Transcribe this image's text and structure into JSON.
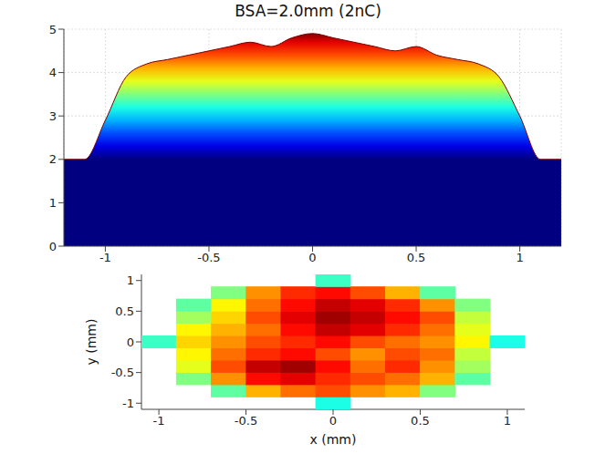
{
  "chart_data": [
    {
      "type": "area",
      "title": "BSA=2.0mm (2nC)",
      "x": [
        -1.2,
        -1.1,
        -1.0,
        -0.9,
        -0.8,
        -0.7,
        -0.6,
        -0.5,
        -0.4,
        -0.3,
        -0.2,
        -0.1,
        0,
        0.1,
        0.2,
        0.3,
        0.4,
        0.5,
        0.6,
        0.7,
        0.8,
        0.9,
        1.0,
        1.1,
        1.2
      ],
      "values": [
        2,
        2,
        2.9,
        3.9,
        4.2,
        4.3,
        4.4,
        4.5,
        4.6,
        4.7,
        4.6,
        4.8,
        4.9,
        4.8,
        4.7,
        4.6,
        4.5,
        4.6,
        4.4,
        4.3,
        4.2,
        3.9,
        3.0,
        2,
        2
      ],
      "xlim": [
        -1.2,
        1.2
      ],
      "xticks": [
        -1,
        -0.5,
        0,
        0.5,
        1
      ],
      "ylim": [
        0,
        5
      ],
      "yticks": [
        0,
        1,
        2,
        3,
        4,
        5
      ],
      "clim": [
        2,
        5
      ],
      "grid": true
    },
    {
      "type": "heatmap",
      "x_label": "x (mm)",
      "y_label": "y (mm)",
      "x": [
        -1,
        -0.8,
        -0.6,
        -0.4,
        -0.2,
        0,
        0.2,
        0.4,
        0.6,
        0.8,
        1
      ],
      "y": [
        -1,
        -0.8,
        -0.6,
        -0.4,
        -0.2,
        0,
        0.2,
        0.4,
        0.6,
        0.8,
        1
      ],
      "cells": [
        [
          null,
          null,
          null,
          null,
          null,
          3.2,
          null,
          null,
          null,
          null,
          null
        ],
        [
          null,
          null,
          3.4,
          4.1,
          4.3,
          4.4,
          4.2,
          4.1,
          3.5,
          null,
          null
        ],
        [
          null,
          3.5,
          4.2,
          4.6,
          4.7,
          4.5,
          4.4,
          4.3,
          4.1,
          3.4,
          null
        ],
        [
          null,
          3.8,
          4.4,
          4.8,
          4.9,
          4.6,
          4.3,
          4.5,
          4.2,
          3.6,
          null
        ],
        [
          null,
          3.9,
          4.3,
          4.5,
          4.6,
          4.4,
          4.2,
          4.4,
          4.3,
          3.7,
          null
        ],
        [
          3.3,
          4.0,
          4.2,
          4.4,
          4.5,
          4.6,
          4.4,
          4.3,
          4.2,
          3.9,
          3.2
        ],
        [
          null,
          3.9,
          4.1,
          4.3,
          4.6,
          4.8,
          4.7,
          4.5,
          4.3,
          3.8,
          null
        ],
        [
          null,
          3.6,
          4.0,
          4.4,
          4.7,
          4.9,
          4.8,
          4.6,
          4.4,
          3.7,
          null
        ],
        [
          null,
          3.4,
          3.9,
          4.3,
          4.6,
          4.8,
          4.7,
          4.5,
          4.2,
          3.5,
          null
        ],
        [
          null,
          null,
          3.5,
          4.2,
          4.5,
          4.6,
          4.4,
          4.1,
          3.4,
          null,
          null
        ],
        [
          null,
          null,
          null,
          null,
          null,
          3.3,
          null,
          null,
          null,
          null,
          null
        ]
      ],
      "xlim": [
        -1.1,
        1.1
      ],
      "xticks": [
        -1,
        -0.5,
        0,
        0.5,
        1
      ],
      "ylim": [
        -1.1,
        1.1
      ],
      "yticks": [
        -1,
        -0.5,
        0,
        0.5,
        1
      ],
      "clim": [
        2,
        5
      ]
    }
  ]
}
